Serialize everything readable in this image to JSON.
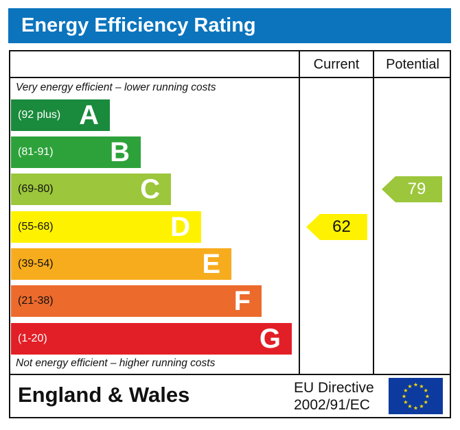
{
  "title": "Energy Efficiency Rating",
  "columns": {
    "current": "Current",
    "potential": "Potential"
  },
  "notes": {
    "top": "Very energy efficient – lower running costs",
    "bottom": "Not energy efficient – higher running costs"
  },
  "footer": {
    "region": "England & Wales",
    "directive_line1": "EU Directive",
    "directive_line2": "2002/91/EC"
  },
  "chart_data": {
    "type": "bar",
    "bands": [
      {
        "letter": "A",
        "range": "(92 plus)",
        "color": "#1a8a3c",
        "text_color": "#ffffff"
      },
      {
        "letter": "B",
        "range": "(81-91)",
        "color": "#2ea23a",
        "text_color": "#ffffff"
      },
      {
        "letter": "C",
        "range": "(69-80)",
        "color": "#9cc63b",
        "text_color": "#111111"
      },
      {
        "letter": "D",
        "range": "(55-68)",
        "color": "#fff200",
        "text_color": "#111111"
      },
      {
        "letter": "E",
        "range": "(39-54)",
        "color": "#f7ac1d",
        "text_color": "#111111"
      },
      {
        "letter": "F",
        "range": "(21-38)",
        "color": "#ec6a2c",
        "text_color": "#111111"
      },
      {
        "letter": "G",
        "range": "(1-20)",
        "color": "#e21f26",
        "text_color": "#ffffff"
      }
    ],
    "current": {
      "value": "62",
      "band": "D",
      "color": "#fff200",
      "text_color": "#111111"
    },
    "potential": {
      "value": "79",
      "band": "C",
      "color": "#9cc63b",
      "text_color": "#ffffff"
    }
  }
}
